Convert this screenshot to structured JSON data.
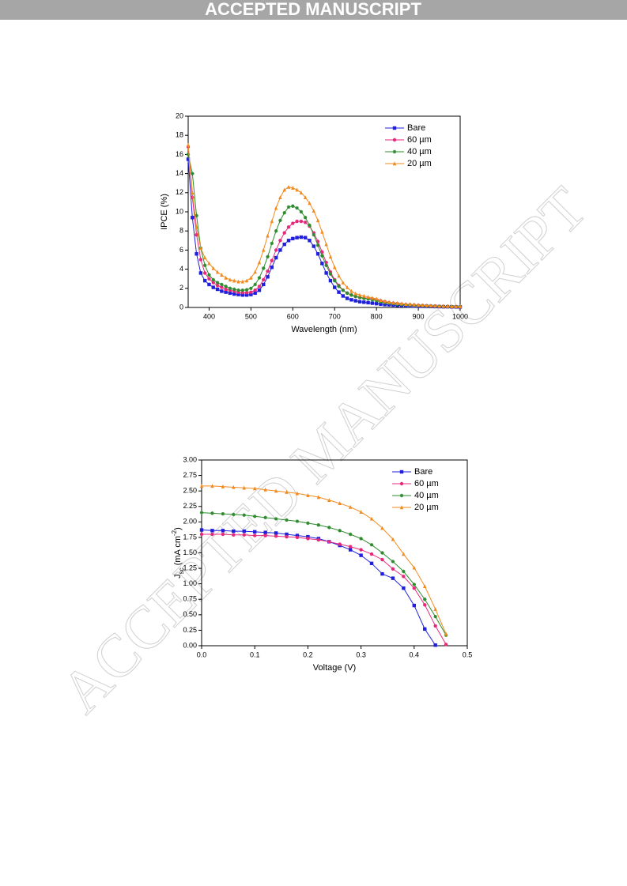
{
  "header": "ACCEPTED MANUSCRIPT",
  "watermark": "ACCEPTED MANUSCRIPT",
  "chart_data": [
    {
      "type": "line",
      "x_label": "Wavelength (nm)",
      "y_label": "IPCE (%)",
      "xlim": [
        350,
        1000
      ],
      "xticks": [
        400,
        500,
        600,
        700,
        800,
        900,
        1000
      ],
      "ylim": [
        0,
        20
      ],
      "yticks": [
        0,
        2,
        4,
        6,
        8,
        10,
        12,
        14,
        16,
        18,
        20
      ],
      "legend": "upper right",
      "x": [
        350,
        360,
        370,
        380,
        390,
        400,
        410,
        420,
        430,
        440,
        450,
        460,
        470,
        480,
        490,
        500,
        510,
        520,
        530,
        540,
        550,
        560,
        570,
        580,
        590,
        600,
        610,
        620,
        630,
        640,
        650,
        660,
        670,
        680,
        690,
        700,
        710,
        720,
        730,
        740,
        750,
        760,
        770,
        780,
        790,
        800,
        810,
        820,
        830,
        840,
        850,
        860,
        870,
        880,
        890,
        900,
        910,
        920,
        930,
        940,
        950,
        960,
        970,
        980,
        990,
        1000
      ],
      "series": [
        {
          "name": "Bare",
          "color": "#1f1fdc",
          "marker": "square",
          "values": [
            15.5,
            9.4,
            5.6,
            3.6,
            2.8,
            2.4,
            2.1,
            1.9,
            1.7,
            1.6,
            1.5,
            1.4,
            1.35,
            1.3,
            1.3,
            1.35,
            1.5,
            1.8,
            2.4,
            3.2,
            4.2,
            5.2,
            6.0,
            6.6,
            7.0,
            7.2,
            7.3,
            7.35,
            7.3,
            7.0,
            6.4,
            5.6,
            4.6,
            3.6,
            2.8,
            2.1,
            1.6,
            1.2,
            0.95,
            0.8,
            0.7,
            0.6,
            0.55,
            0.5,
            0.45,
            0.4,
            0.35,
            0.3,
            0.28,
            0.25,
            0.22,
            0.2,
            0.18,
            0.16,
            0.15,
            0.13,
            0.12,
            0.11,
            0.1,
            0.09,
            0.08,
            0.07,
            0.07,
            0.06,
            0.05,
            0.05
          ]
        },
        {
          "name": "60 µm",
          "color": "#e8287a",
          "marker": "circle",
          "values": [
            16.8,
            11.5,
            7.6,
            5.0,
            3.6,
            3.0,
            2.6,
            2.3,
            2.1,
            1.9,
            1.8,
            1.7,
            1.6,
            1.55,
            1.55,
            1.6,
            1.8,
            2.2,
            2.9,
            3.8,
            4.9,
            6.0,
            7.0,
            7.8,
            8.4,
            8.8,
            9.0,
            9.0,
            8.9,
            8.5,
            7.8,
            6.9,
            5.8,
            4.7,
            3.7,
            2.9,
            2.3,
            1.8,
            1.5,
            1.3,
            1.15,
            1.05,
            1.0,
            0.95,
            0.9,
            0.8,
            0.7,
            0.6,
            0.5,
            0.45,
            0.4,
            0.35,
            0.3,
            0.28,
            0.25,
            0.22,
            0.2,
            0.18,
            0.16,
            0.15,
            0.13,
            0.12,
            0.11,
            0.1,
            0.09,
            0.08
          ]
        },
        {
          "name": "40 µm",
          "color": "#2e8b2e",
          "marker": "star",
          "values": [
            16.0,
            14.0,
            9.6,
            6.2,
            4.4,
            3.4,
            2.9,
            2.6,
            2.4,
            2.2,
            2.0,
            1.9,
            1.8,
            1.8,
            1.85,
            2.0,
            2.4,
            3.1,
            4.1,
            5.3,
            6.7,
            8.0,
            9.1,
            9.9,
            10.5,
            10.6,
            10.4,
            10.0,
            9.4,
            8.6,
            7.6,
            6.5,
            5.4,
            4.4,
            3.5,
            2.8,
            2.2,
            1.8,
            1.5,
            1.3,
            1.15,
            1.05,
            0.95,
            0.9,
            0.8,
            0.7,
            0.6,
            0.5,
            0.45,
            0.4,
            0.35,
            0.3,
            0.28,
            0.25,
            0.22,
            0.2,
            0.18,
            0.16,
            0.15,
            0.13,
            0.12,
            0.11,
            0.1,
            0.09,
            0.08,
            0.08
          ]
        },
        {
          "name": "20 µm",
          "color": "#f28a1e",
          "marker": "triangle",
          "values": [
            17.0,
            12.0,
            8.4,
            6.2,
            5.2,
            4.6,
            4.1,
            3.7,
            3.4,
            3.1,
            2.9,
            2.8,
            2.7,
            2.7,
            2.8,
            3.1,
            3.7,
            4.7,
            6.0,
            7.5,
            9.0,
            10.4,
            11.5,
            12.3,
            12.6,
            12.5,
            12.3,
            12.0,
            11.5,
            10.9,
            10.1,
            9.1,
            7.9,
            6.6,
            5.3,
            4.2,
            3.3,
            2.6,
            2.1,
            1.7,
            1.45,
            1.3,
            1.2,
            1.1,
            1.0,
            0.9,
            0.75,
            0.65,
            0.55,
            0.5,
            0.45,
            0.4,
            0.35,
            0.32,
            0.28,
            0.25,
            0.22,
            0.2,
            0.18,
            0.16,
            0.15,
            0.13,
            0.12,
            0.11,
            0.1,
            0.1
          ]
        }
      ]
    },
    {
      "type": "line",
      "x_label": "Voltage (V)",
      "y_label": {
        "main": "J",
        "sub": "sc",
        "rest": " (mA cm",
        "sup": "-2",
        "end": ")"
      },
      "xlim": [
        0,
        0.5
      ],
      "xticks": [
        {
          "value": 0,
          "label": "0.0"
        },
        0.1,
        0.2,
        0.3,
        0.4,
        0.5
      ],
      "ylim": [
        0,
        3
      ],
      "yticks": [
        {
          "value": 0,
          "label": "0.00"
        },
        {
          "value": 0.25,
          "label": "0.25"
        },
        {
          "value": 0.5,
          "label": "0.50"
        },
        {
          "value": 0.75,
          "label": "0.75"
        },
        {
          "value": 1,
          "label": "1.00"
        },
        {
          "value": 1.25,
          "label": "1.25"
        },
        {
          "value": 1.5,
          "label": "1.50"
        },
        {
          "value": 1.75,
          "label": "1.75"
        },
        {
          "value": 2,
          "label": "2.00"
        },
        {
          "value": 2.25,
          "label": "2.25"
        },
        {
          "value": 2.5,
          "label": "2.50"
        },
        {
          "value": 2.75,
          "label": "2.75"
        },
        {
          "value": 3,
          "label": "3.00"
        }
      ],
      "legend": "upper right",
      "series": [
        {
          "name": "Bare",
          "color": "#1f1fdc",
          "marker": "square",
          "x": [
            0,
            0.02,
            0.04,
            0.06,
            0.08,
            0.1,
            0.12,
            0.14,
            0.16,
            0.18,
            0.2,
            0.22,
            0.24,
            0.26,
            0.28,
            0.3,
            0.32,
            0.34,
            0.36,
            0.38,
            0.4,
            0.42,
            0.44
          ],
          "values": [
            1.87,
            1.86,
            1.86,
            1.85,
            1.85,
            1.84,
            1.83,
            1.82,
            1.8,
            1.78,
            1.76,
            1.73,
            1.68,
            1.62,
            1.55,
            1.46,
            1.33,
            1.16,
            1.09,
            0.93,
            0.65,
            0.27,
            0.01
          ]
        },
        {
          "name": "60 µm",
          "color": "#e8287a",
          "marker": "circle",
          "x": [
            0,
            0.02,
            0.04,
            0.06,
            0.08,
            0.1,
            0.12,
            0.14,
            0.16,
            0.18,
            0.2,
            0.22,
            0.24,
            0.26,
            0.28,
            0.3,
            0.32,
            0.34,
            0.36,
            0.38,
            0.4,
            0.42,
            0.44,
            0.46
          ],
          "values": [
            1.8,
            1.8,
            1.8,
            1.79,
            1.79,
            1.78,
            1.78,
            1.77,
            1.76,
            1.75,
            1.73,
            1.71,
            1.68,
            1.64,
            1.6,
            1.55,
            1.48,
            1.39,
            1.24,
            1.12,
            0.93,
            0.66,
            0.32,
            0.02
          ]
        },
        {
          "name": "40 µm",
          "color": "#2e8b2e",
          "marker": "star",
          "x": [
            0,
            0.02,
            0.04,
            0.06,
            0.08,
            0.1,
            0.12,
            0.14,
            0.16,
            0.18,
            0.2,
            0.22,
            0.24,
            0.26,
            0.28,
            0.3,
            0.32,
            0.34,
            0.36,
            0.38,
            0.4,
            0.42,
            0.44,
            0.46
          ],
          "values": [
            2.15,
            2.14,
            2.13,
            2.12,
            2.11,
            2.09,
            2.07,
            2.05,
            2.03,
            2.01,
            1.98,
            1.95,
            1.91,
            1.86,
            1.8,
            1.73,
            1.63,
            1.5,
            1.36,
            1.2,
            0.99,
            0.75,
            0.47,
            0.17
          ]
        },
        {
          "name": "20 µm",
          "color": "#f28a1e",
          "marker": "triangle",
          "x": [
            0,
            0.02,
            0.04,
            0.06,
            0.08,
            0.1,
            0.12,
            0.14,
            0.16,
            0.18,
            0.2,
            0.22,
            0.24,
            0.26,
            0.28,
            0.3,
            0.32,
            0.34,
            0.36,
            0.38,
            0.4,
            0.42,
            0.44,
            0.46
          ],
          "values": [
            2.58,
            2.58,
            2.57,
            2.56,
            2.55,
            2.54,
            2.52,
            2.5,
            2.48,
            2.46,
            2.43,
            2.4,
            2.35,
            2.3,
            2.24,
            2.16,
            2.05,
            1.9,
            1.72,
            1.48,
            1.26,
            0.96,
            0.59,
            0.19
          ]
        }
      ]
    }
  ]
}
